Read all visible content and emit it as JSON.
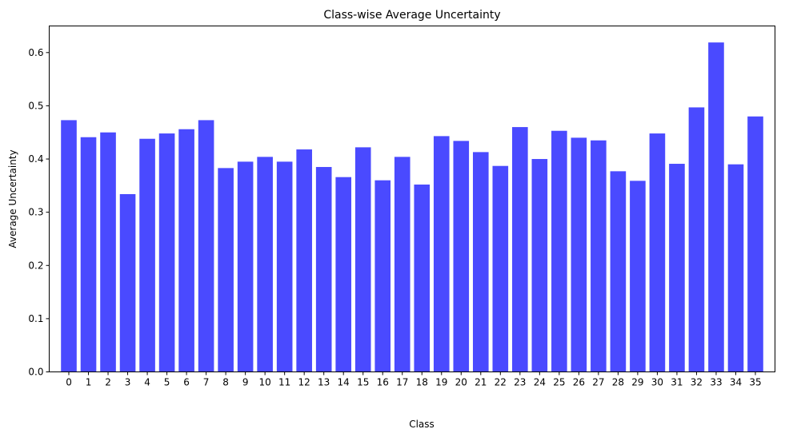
{
  "chart_data": {
    "type": "bar",
    "title": "Class-wise Average Uncertainty",
    "xlabel": "Class",
    "ylabel": "Average Uncertainty",
    "categories": [
      "0",
      "1",
      "2",
      "3",
      "4",
      "5",
      "6",
      "7",
      "8",
      "9",
      "10",
      "11",
      "12",
      "13",
      "14",
      "15",
      "16",
      "17",
      "18",
      "19",
      "20",
      "21",
      "22",
      "23",
      "24",
      "25",
      "26",
      "27",
      "28",
      "29",
      "30",
      "31",
      "32",
      "33",
      "34",
      "35"
    ],
    "values": [
      0.473,
      0.441,
      0.45,
      0.334,
      0.438,
      0.448,
      0.456,
      0.473,
      0.383,
      0.395,
      0.404,
      0.395,
      0.418,
      0.385,
      0.366,
      0.422,
      0.36,
      0.404,
      0.352,
      0.443,
      0.434,
      0.413,
      0.387,
      0.46,
      0.4,
      0.453,
      0.44,
      0.435,
      0.377,
      0.359,
      0.448,
      0.391,
      0.497,
      0.619,
      0.39,
      0.48
    ],
    "ylim": [
      0,
      0.65
    ],
    "yticks": [
      0.0,
      0.1,
      0.2,
      0.3,
      0.4,
      0.5,
      0.6
    ],
    "ytick_labels": [
      "0.0",
      "0.1",
      "0.2",
      "0.3",
      "0.4",
      "0.5",
      "0.6"
    ],
    "bar_color": "#4a4aff",
    "grid": false,
    "legend": "none"
  }
}
